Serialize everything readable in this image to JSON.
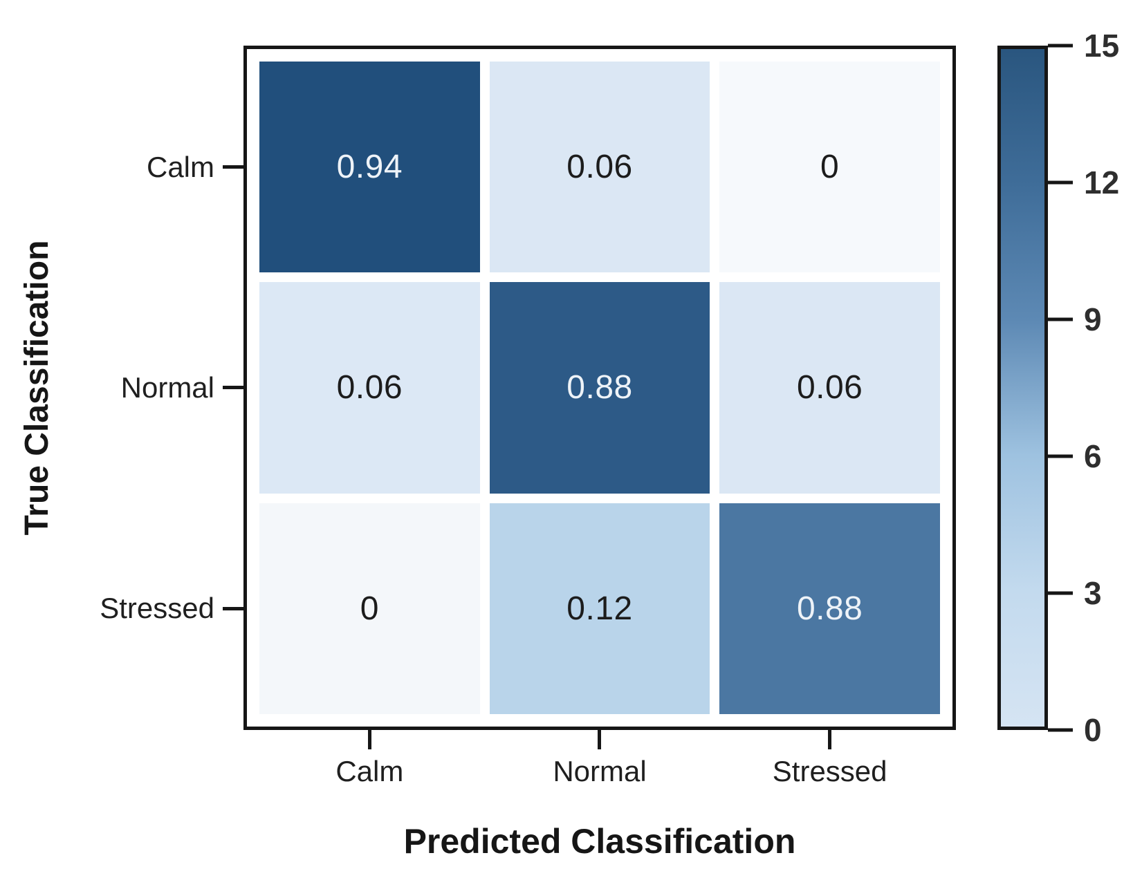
{
  "chart_data": {
    "type": "heatmap",
    "xlabel": "Predicted Classification",
    "ylabel": "True Classification",
    "x_categories": [
      "Calm",
      "Normal",
      "Stressed"
    ],
    "y_categories": [
      "Calm",
      "Normal",
      "Stressed"
    ],
    "values": [
      [
        0.94,
        0.06,
        0
      ],
      [
        0.06,
        0.88,
        0.06
      ],
      [
        0,
        0.12,
        0.88
      ]
    ],
    "cell_labels": [
      [
        "0.94",
        "0.06",
        "0"
      ],
      [
        "0.06",
        "0.88",
        "0.06"
      ],
      [
        "0",
        "0.12",
        "0.88"
      ]
    ],
    "cell_colors": [
      [
        "#214f7c",
        "#dbe7f4",
        "#f6f9fc"
      ],
      [
        "#dce8f5",
        "#2d5a87",
        "#dbe7f4"
      ],
      [
        "#f4f7fa",
        "#b9d4ea",
        "#4b77a2"
      ]
    ],
    "cell_text_colors": [
      [
        "#eef3f8",
        "#1c1c1c",
        "#1c1c1c"
      ],
      [
        "#1c1c1c",
        "#eef3f8",
        "#1c1c1c"
      ],
      [
        "#1c1c1c",
        "#1c1c1c",
        "#eef3f8"
      ]
    ],
    "grid": false,
    "colorbar": {
      "min": 0,
      "max": 15,
      "position": "right",
      "tick_values": [
        15,
        12,
        9,
        6,
        3,
        0
      ],
      "tick_labels": [
        "15",
        "12",
        "9",
        "6",
        "3",
        "0"
      ],
      "gradient_stops_bottom_to_top": [
        "#d5e4f3",
        "#c3daee",
        "#9ec2e0",
        "#5d89b4",
        "#3f6d99",
        "#2a567f"
      ]
    }
  }
}
